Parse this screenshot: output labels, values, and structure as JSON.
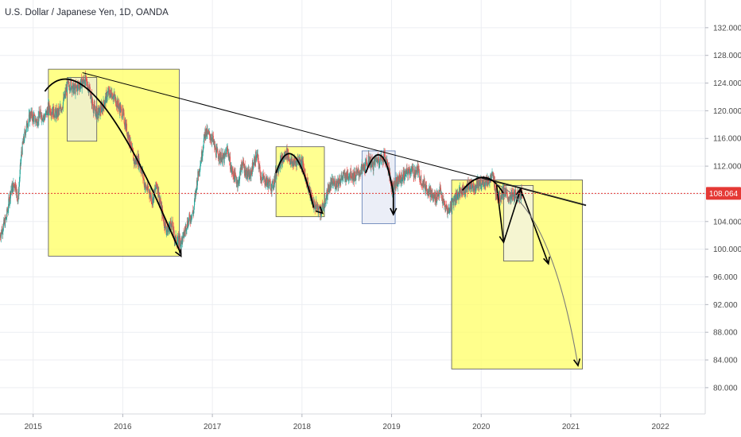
{
  "header": {
    "title": "U.S. Dollar / Japanese Yen, 1D, OANDA"
  },
  "colors": {
    "up": "#26a69a",
    "down": "#ef5350",
    "grid": "#eceef2",
    "annotation_fill": "#ffff66",
    "annotation_border": "#555555",
    "price_line": "#e53935",
    "drawing": "#000000"
  },
  "chart_data": {
    "type": "candlestick",
    "title": "U.S. Dollar / Japanese Yen, 1D, OANDA",
    "xlabel": "",
    "ylabel": "",
    "xlim": [
      2014.63,
      2022.5
    ],
    "ylim": [
      76.2,
      136.0
    ],
    "grid": true,
    "x_ticks": [
      "2015",
      "2016",
      "2017",
      "2018",
      "2019",
      "2020",
      "2021",
      "2022"
    ],
    "y_ticks": [
      "80.000",
      "84.000",
      "88.000",
      "92.000",
      "96.000",
      "100.000",
      "104.000",
      "108.000",
      "112.000",
      "116.000",
      "120.000",
      "124.000",
      "128.000",
      "132.000"
    ],
    "current_price": "108.064",
    "series": [
      {
        "points": [
          [
            2014.63,
            102.0
          ],
          [
            2014.7,
            104.5
          ],
          [
            2014.75,
            108.5
          ],
          [
            2014.8,
            109.5
          ],
          [
            2014.83,
            107.0
          ],
          [
            2014.87,
            114.0
          ],
          [
            2014.92,
            117.5
          ],
          [
            2014.97,
            119.5
          ],
          [
            2015.0,
            119.0
          ],
          [
            2015.04,
            118.5
          ],
          [
            2015.08,
            119.5
          ],
          [
            2015.13,
            119.0
          ],
          [
            2015.17,
            120.5
          ],
          [
            2015.21,
            120.0
          ],
          [
            2015.25,
            119.5
          ],
          [
            2015.29,
            119.8
          ],
          [
            2015.33,
            121.0
          ],
          [
            2015.38,
            123.5
          ],
          [
            2015.42,
            123.8
          ],
          [
            2015.46,
            123.0
          ],
          [
            2015.5,
            123.5
          ],
          [
            2015.54,
            124.0
          ],
          [
            2015.58,
            124.5
          ],
          [
            2015.63,
            123.0
          ],
          [
            2015.67,
            120.5
          ],
          [
            2015.71,
            119.5
          ],
          [
            2015.75,
            120.0
          ],
          [
            2015.79,
            121.0
          ],
          [
            2015.83,
            122.5
          ],
          [
            2015.88,
            122.5
          ],
          [
            2015.92,
            121.5
          ],
          [
            2015.96,
            120.5
          ],
          [
            2016.0,
            119.5
          ],
          [
            2016.04,
            117.5
          ],
          [
            2016.08,
            115.5
          ],
          [
            2016.13,
            112.5
          ],
          [
            2016.17,
            113.0
          ],
          [
            2016.21,
            111.5
          ],
          [
            2016.25,
            109.0
          ],
          [
            2016.29,
            108.5
          ],
          [
            2016.33,
            107.0
          ],
          [
            2016.38,
            109.5
          ],
          [
            2016.42,
            106.5
          ],
          [
            2016.46,
            104.0
          ],
          [
            2016.5,
            102.5
          ],
          [
            2016.54,
            104.0
          ],
          [
            2016.58,
            101.5
          ],
          [
            2016.63,
            101.0
          ],
          [
            2016.67,
            101.5
          ],
          [
            2016.71,
            103.5
          ],
          [
            2016.75,
            104.5
          ],
          [
            2016.79,
            105.5
          ],
          [
            2016.83,
            110.0
          ],
          [
            2016.88,
            113.5
          ],
          [
            2016.92,
            117.0
          ],
          [
            2016.96,
            116.5
          ],
          [
            2017.0,
            116.0
          ],
          [
            2017.04,
            114.0
          ],
          [
            2017.08,
            113.5
          ],
          [
            2017.13,
            113.0
          ],
          [
            2017.17,
            114.5
          ],
          [
            2017.21,
            111.5
          ],
          [
            2017.25,
            110.5
          ],
          [
            2017.29,
            109.5
          ],
          [
            2017.33,
            112.5
          ],
          [
            2017.38,
            111.0
          ],
          [
            2017.42,
            110.5
          ],
          [
            2017.46,
            112.5
          ],
          [
            2017.5,
            113.5
          ],
          [
            2017.54,
            110.5
          ],
          [
            2017.58,
            110.0
          ],
          [
            2017.63,
            109.5
          ],
          [
            2017.67,
            109.0
          ],
          [
            2017.71,
            111.0
          ],
          [
            2017.75,
            112.5
          ],
          [
            2017.79,
            113.0
          ],
          [
            2017.83,
            114.0
          ],
          [
            2017.88,
            112.5
          ],
          [
            2017.92,
            112.5
          ],
          [
            2017.96,
            113.0
          ],
          [
            2018.0,
            112.5
          ],
          [
            2018.04,
            110.5
          ],
          [
            2018.08,
            108.5
          ],
          [
            2018.13,
            106.5
          ],
          [
            2018.17,
            106.0
          ],
          [
            2018.21,
            105.5
          ],
          [
            2018.25,
            106.5
          ],
          [
            2018.29,
            108.5
          ],
          [
            2018.33,
            109.5
          ],
          [
            2018.38,
            109.5
          ],
          [
            2018.42,
            110.0
          ],
          [
            2018.46,
            110.5
          ],
          [
            2018.5,
            110.5
          ],
          [
            2018.54,
            111.0
          ],
          [
            2018.58,
            110.5
          ],
          [
            2018.63,
            111.0
          ],
          [
            2018.67,
            111.5
          ],
          [
            2018.71,
            112.0
          ],
          [
            2018.75,
            113.0
          ],
          [
            2018.79,
            112.0
          ],
          [
            2018.83,
            113.0
          ],
          [
            2018.88,
            113.0
          ],
          [
            2018.92,
            113.5
          ],
          [
            2018.96,
            112.0
          ],
          [
            2019.0,
            109.0
          ],
          [
            2019.04,
            109.5
          ],
          [
            2019.08,
            110.0
          ],
          [
            2019.13,
            110.5
          ],
          [
            2019.17,
            111.0
          ],
          [
            2019.21,
            111.5
          ],
          [
            2019.25,
            111.0
          ],
          [
            2019.29,
            111.5
          ],
          [
            2019.33,
            110.0
          ],
          [
            2019.38,
            109.0
          ],
          [
            2019.42,
            108.5
          ],
          [
            2019.46,
            107.5
          ],
          [
            2019.5,
            107.5
          ],
          [
            2019.54,
            108.5
          ],
          [
            2019.58,
            106.5
          ],
          [
            2019.63,
            105.5
          ],
          [
            2019.67,
            106.5
          ],
          [
            2019.71,
            107.5
          ],
          [
            2019.75,
            108.0
          ],
          [
            2019.79,
            108.5
          ],
          [
            2019.83,
            108.7
          ],
          [
            2019.88,
            109.5
          ],
          [
            2019.92,
            109.0
          ],
          [
            2019.96,
            109.5
          ],
          [
            2020.0,
            109.5
          ],
          [
            2020.04,
            109.8
          ],
          [
            2020.08,
            109.9
          ],
          [
            2020.13,
            110.5
          ],
          [
            2020.17,
            108.0
          ],
          [
            2020.21,
            107.5
          ],
          [
            2020.25,
            108.5
          ],
          [
            2020.29,
            107.5
          ],
          [
            2020.33,
            107.5
          ],
          [
            2020.38,
            107.8
          ],
          [
            2020.42,
            107.9
          ],
          [
            2020.46,
            108.1
          ]
        ]
      }
    ]
  }
}
